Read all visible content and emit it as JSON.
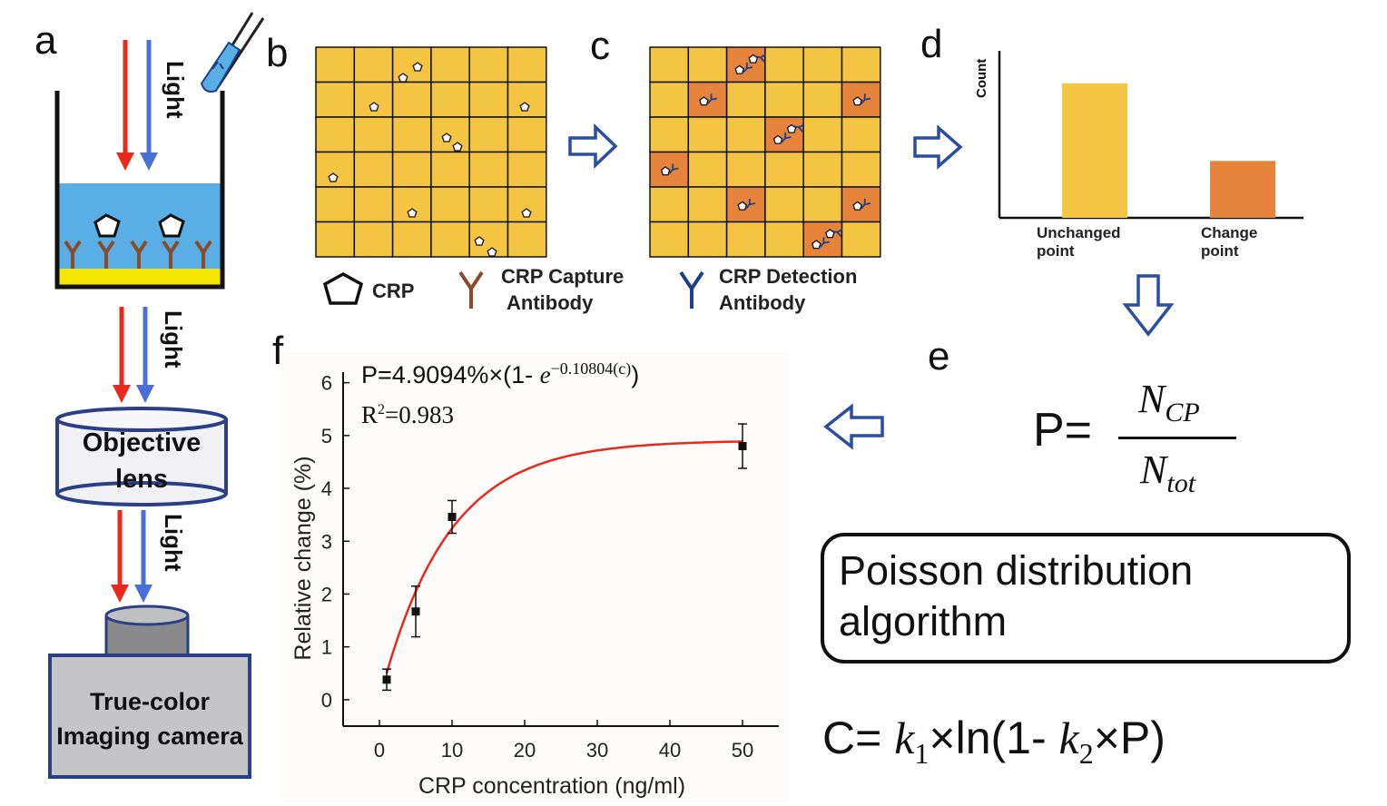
{
  "panel_labels": {
    "a": "a",
    "b": "b",
    "c": "c",
    "d": "d",
    "e": "e",
    "f": "f"
  },
  "panel_a": {
    "light_1": "Light",
    "light_2": "Light",
    "light_3": "Light",
    "lens_line1": "Objective",
    "lens_line2": "lens",
    "camera_line1": "True-color",
    "camera_line2": "Imaging camera"
  },
  "legend": {
    "crp": "CRP",
    "capture_line1": "CRP Capture",
    "capture_line2": "Antibody",
    "detection_line1": "CRP Detection",
    "detection_line2": "Antibody"
  },
  "panel_d_chart": {
    "type": "bar",
    "ylabel": "Count",
    "categories": [
      [
        "Unchanged",
        "point"
      ],
      [
        "Change",
        "point"
      ]
    ],
    "values": [
      0.78,
      0.33
    ],
    "colors": [
      "#f4c542",
      "#e6843c"
    ]
  },
  "panel_e": {
    "p_label": "P=",
    "numerator_base": "N",
    "numerator_sub": "CP",
    "denominator_base": "N",
    "denominator_sub": "tot",
    "algorithm_line1": "Poisson distribution",
    "algorithm_line2": "algorithm",
    "c_label": "C= ",
    "k1_base": "k",
    "k1_sub": "1",
    "mid_text": "×ln(1- ",
    "k2_base": "k",
    "k2_sub": "2",
    "tail_text": "×P)"
  },
  "chart_data": {
    "type": "scatter",
    "xlabel": "CRP concentration (ng/ml)",
    "ylabel": "Relative change (%)",
    "xlim": [
      -5,
      55
    ],
    "ylim": [
      -0.5,
      6.2
    ],
    "xticks": [
      0,
      10,
      20,
      30,
      40,
      50
    ],
    "yticks": [
      0,
      1,
      2,
      3,
      4,
      5,
      6
    ],
    "grid": false,
    "points": [
      {
        "x": 1,
        "y": 0.38,
        "err": 0.2
      },
      {
        "x": 5,
        "y": 1.67,
        "err": 0.48
      },
      {
        "x": 10,
        "y": 3.46,
        "err": 0.31
      },
      {
        "x": 50,
        "y": 4.8,
        "err": 0.42
      }
    ],
    "fit": {
      "a": 4.9094,
      "b": 0.10804,
      "color": "#e8291c"
    },
    "equation_prefix": "P=4.9094%×(1- ",
    "equation_exp_base": "e",
    "equation_exponent": "−0.10804(c)",
    "equation_suffix": ")",
    "r2_prefix": "R",
    "r2_sup": "2",
    "r2_value": "=0.983"
  },
  "colors": {
    "grid_cell": "#f4c542",
    "changed_cell": "#e6843c",
    "arrow_blue": "#2b4ea0",
    "light_red": "#e8291c",
    "light_blue": "#4a6fd8",
    "solution": "#5aaee6",
    "substrate": "#f6e700",
    "capture_ab": "#8b4a2b",
    "detection_ab": "#1f3f86"
  }
}
